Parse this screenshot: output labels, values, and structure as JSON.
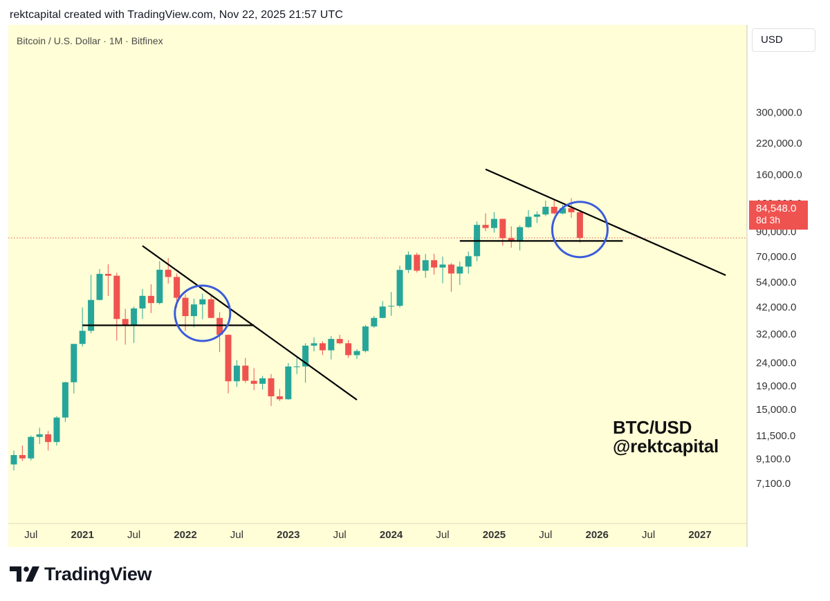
{
  "header": {
    "caption": "rektcapital created with TradingView.com, Nov 22, 2025 21:57 UTC"
  },
  "symbol": {
    "label": "Bitcoin / U.S. Dollar · 1M · Bitfinex"
  },
  "currency_button": {
    "label": "USD"
  },
  "price_tag": {
    "price": "84,548.0",
    "countdown": "8d 3h"
  },
  "watermark": {
    "line1": "BTC/USD",
    "line2": "@rektcapital"
  },
  "footer": {
    "logo_text": "TradingView"
  },
  "colors": {
    "up": "#26a69a",
    "down": "#ef5350",
    "background": "#fffed6",
    "circle": "#3b5bdb",
    "trendline": "#000000"
  },
  "chart_data": {
    "type": "candlestick",
    "title": "Bitcoin / U.S. Dollar · 1M · Bitfinex",
    "y_scale": "log",
    "ylim": [
      6200,
      350000
    ],
    "xlim": [
      "2020-05",
      "2027-04"
    ],
    "y_ticks": [
      {
        "value": 7100,
        "label": "7,100.0"
      },
      {
        "value": 9100,
        "label": "9,100.0"
      },
      {
        "value": 11500,
        "label": "11,500.0"
      },
      {
        "value": 15000,
        "label": "15,000.0"
      },
      {
        "value": 19000,
        "label": "19,000.0"
      },
      {
        "value": 24000,
        "label": "24,000.0"
      },
      {
        "value": 32000,
        "label": "32,000.0"
      },
      {
        "value": 42000,
        "label": "42,000.0"
      },
      {
        "value": 54000,
        "label": "54,000.0"
      },
      {
        "value": 70000,
        "label": "70,000.0"
      },
      {
        "value": 90000,
        "label": "90,000.0"
      },
      {
        "value": 120000,
        "label": "120,000.0"
      },
      {
        "value": 160000,
        "label": "160,000.0"
      },
      {
        "value": 220000,
        "label": "220,000.0"
      },
      {
        "value": 300000,
        "label": "300,000.0"
      }
    ],
    "x_ticks": [
      {
        "date": "2020-07",
        "label": "Jul",
        "bold": false
      },
      {
        "date": "2021-01",
        "label": "2021",
        "bold": true
      },
      {
        "date": "2021-07",
        "label": "Jul",
        "bold": false
      },
      {
        "date": "2022-01",
        "label": "2022",
        "bold": true
      },
      {
        "date": "2022-07",
        "label": "Jul",
        "bold": false
      },
      {
        "date": "2023-01",
        "label": "2023",
        "bold": true
      },
      {
        "date": "2023-07",
        "label": "Jul",
        "bold": false
      },
      {
        "date": "2024-01",
        "label": "2024",
        "bold": true
      },
      {
        "date": "2024-07",
        "label": "Jul",
        "bold": false
      },
      {
        "date": "2025-01",
        "label": "2025",
        "bold": true
      },
      {
        "date": "2025-07",
        "label": "Jul",
        "bold": false
      },
      {
        "date": "2026-01",
        "label": "2026",
        "bold": true
      },
      {
        "date": "2026-07",
        "label": "Jul",
        "bold": false
      },
      {
        "date": "2027-01",
        "label": "2027",
        "bold": true
      }
    ],
    "current_price": 84548,
    "candles": [
      {
        "date": "2020-05",
        "o": 8600,
        "h": 9900,
        "l": 8100,
        "c": 9450
      },
      {
        "date": "2020-06",
        "o": 9450,
        "h": 10400,
        "l": 8900,
        "c": 9140
      },
      {
        "date": "2020-07",
        "o": 9140,
        "h": 11500,
        "l": 8950,
        "c": 11350
      },
      {
        "date": "2020-08",
        "o": 11350,
        "h": 12450,
        "l": 10550,
        "c": 11650
      },
      {
        "date": "2020-09",
        "o": 11650,
        "h": 12050,
        "l": 9900,
        "c": 10780
      },
      {
        "date": "2020-10",
        "o": 10780,
        "h": 14000,
        "l": 10400,
        "c": 13800
      },
      {
        "date": "2020-11",
        "o": 13800,
        "h": 19800,
        "l": 13200,
        "c": 19700
      },
      {
        "date": "2020-12",
        "o": 19700,
        "h": 29000,
        "l": 17600,
        "c": 29000
      },
      {
        "date": "2021-01",
        "o": 29000,
        "h": 41900,
        "l": 28200,
        "c": 33100
      },
      {
        "date": "2021-02",
        "o": 33100,
        "h": 58300,
        "l": 32300,
        "c": 45200
      },
      {
        "date": "2021-03",
        "o": 45200,
        "h": 61700,
        "l": 45000,
        "c": 58800
      },
      {
        "date": "2021-04",
        "o": 58800,
        "h": 64800,
        "l": 47000,
        "c": 57700
      },
      {
        "date": "2021-05",
        "o": 57700,
        "h": 59500,
        "l": 30000,
        "c": 37300
      },
      {
        "date": "2021-06",
        "o": 37300,
        "h": 41300,
        "l": 28800,
        "c": 35000
      },
      {
        "date": "2021-07",
        "o": 35000,
        "h": 42300,
        "l": 29300,
        "c": 41500
      },
      {
        "date": "2021-08",
        "o": 41500,
        "h": 50500,
        "l": 37300,
        "c": 47100
      },
      {
        "date": "2021-09",
        "o": 47100,
        "h": 52900,
        "l": 39600,
        "c": 43800
      },
      {
        "date": "2021-10",
        "o": 43800,
        "h": 66900,
        "l": 43200,
        "c": 61300
      },
      {
        "date": "2021-11",
        "o": 61300,
        "h": 68900,
        "l": 53300,
        "c": 57000
      },
      {
        "date": "2021-12",
        "o": 57000,
        "h": 59000,
        "l": 42000,
        "c": 46200
      },
      {
        "date": "2022-01",
        "o": 46200,
        "h": 47900,
        "l": 33000,
        "c": 38400
      },
      {
        "date": "2022-02",
        "o": 38400,
        "h": 45800,
        "l": 34300,
        "c": 43200
      },
      {
        "date": "2022-03",
        "o": 43200,
        "h": 48200,
        "l": 37200,
        "c": 45500
      },
      {
        "date": "2022-04",
        "o": 45500,
        "h": 47400,
        "l": 37600,
        "c": 37700
      },
      {
        "date": "2022-05",
        "o": 37700,
        "h": 40000,
        "l": 26700,
        "c": 31800
      },
      {
        "date": "2022-06",
        "o": 31800,
        "h": 31900,
        "l": 17600,
        "c": 19900
      },
      {
        "date": "2022-07",
        "o": 19900,
        "h": 24600,
        "l": 18800,
        "c": 23300
      },
      {
        "date": "2022-08",
        "o": 23300,
        "h": 25200,
        "l": 19600,
        "c": 20000
      },
      {
        "date": "2022-09",
        "o": 20000,
        "h": 22700,
        "l": 18200,
        "c": 19400
      },
      {
        "date": "2022-10",
        "o": 19400,
        "h": 21000,
        "l": 18300,
        "c": 20500
      },
      {
        "date": "2022-11",
        "o": 20500,
        "h": 21400,
        "l": 15500,
        "c": 17100
      },
      {
        "date": "2022-12",
        "o": 17100,
        "h": 18400,
        "l": 16300,
        "c": 16600
      },
      {
        "date": "2023-01",
        "o": 16600,
        "h": 23900,
        "l": 16500,
        "c": 23100
      },
      {
        "date": "2023-02",
        "o": 23100,
        "h": 25200,
        "l": 21400,
        "c": 23100
      },
      {
        "date": "2023-03",
        "o": 23100,
        "h": 29200,
        "l": 19600,
        "c": 28500
      },
      {
        "date": "2023-04",
        "o": 28500,
        "h": 31000,
        "l": 26900,
        "c": 29200
      },
      {
        "date": "2023-05",
        "o": 29200,
        "h": 29800,
        "l": 25900,
        "c": 27200
      },
      {
        "date": "2023-06",
        "o": 27200,
        "h": 31400,
        "l": 24800,
        "c": 30500
      },
      {
        "date": "2023-07",
        "o": 30500,
        "h": 31800,
        "l": 28900,
        "c": 29200
      },
      {
        "date": "2023-08",
        "o": 29200,
        "h": 30200,
        "l": 25200,
        "c": 25900
      },
      {
        "date": "2023-09",
        "o": 25900,
        "h": 27500,
        "l": 24900,
        "c": 27000
      },
      {
        "date": "2023-10",
        "o": 27000,
        "h": 35100,
        "l": 26600,
        "c": 34600
      },
      {
        "date": "2023-11",
        "o": 34600,
        "h": 38400,
        "l": 34100,
        "c": 37700
      },
      {
        "date": "2023-12",
        "o": 37700,
        "h": 44700,
        "l": 37600,
        "c": 42300
      },
      {
        "date": "2024-01",
        "o": 42300,
        "h": 49000,
        "l": 38500,
        "c": 42600
      },
      {
        "date": "2024-02",
        "o": 42600,
        "h": 63900,
        "l": 41900,
        "c": 61200
      },
      {
        "date": "2024-03",
        "o": 61200,
        "h": 73800,
        "l": 59300,
        "c": 71300
      },
      {
        "date": "2024-04",
        "o": 71300,
        "h": 72800,
        "l": 59600,
        "c": 60700
      },
      {
        "date": "2024-05",
        "o": 60700,
        "h": 71900,
        "l": 56500,
        "c": 67500
      },
      {
        "date": "2024-06",
        "o": 67500,
        "h": 72000,
        "l": 58400,
        "c": 62700
      },
      {
        "date": "2024-07",
        "o": 62700,
        "h": 70000,
        "l": 53500,
        "c": 64600
      },
      {
        "date": "2024-08",
        "o": 64600,
        "h": 65500,
        "l": 49100,
        "c": 59000
      },
      {
        "date": "2024-09",
        "o": 59000,
        "h": 66500,
        "l": 52600,
        "c": 63300
      },
      {
        "date": "2024-10",
        "o": 63300,
        "h": 73600,
        "l": 58900,
        "c": 70300
      },
      {
        "date": "2024-11",
        "o": 70300,
        "h": 99800,
        "l": 66800,
        "c": 96400
      },
      {
        "date": "2024-12",
        "o": 96400,
        "h": 108300,
        "l": 90500,
        "c": 93400
      },
      {
        "date": "2025-01",
        "o": 93400,
        "h": 109600,
        "l": 89200,
        "c": 102400
      },
      {
        "date": "2025-02",
        "o": 102400,
        "h": 102500,
        "l": 78200,
        "c": 84300
      },
      {
        "date": "2025-03",
        "o": 84300,
        "h": 95000,
        "l": 76600,
        "c": 82500
      },
      {
        "date": "2025-04",
        "o": 82500,
        "h": 95800,
        "l": 74500,
        "c": 94200
      },
      {
        "date": "2025-05",
        "o": 94200,
        "h": 111900,
        "l": 93400,
        "c": 104600
      },
      {
        "date": "2025-06",
        "o": 104600,
        "h": 110400,
        "l": 98200,
        "c": 107100
      },
      {
        "date": "2025-07",
        "o": 107100,
        "h": 123200,
        "l": 105300,
        "c": 115700
      },
      {
        "date": "2025-08",
        "o": 115700,
        "h": 124500,
        "l": 107300,
        "c": 108200
      },
      {
        "date": "2025-09",
        "o": 108200,
        "h": 117900,
        "l": 107300,
        "c": 114000
      },
      {
        "date": "2025-10",
        "o": 114000,
        "h": 126200,
        "l": 103500,
        "c": 109500
      },
      {
        "date": "2025-11",
        "o": 109500,
        "h": 111000,
        "l": 80600,
        "c": 84548
      }
    ],
    "annotations": [
      {
        "kind": "trendline",
        "from": {
          "date": "2021-08",
          "value": 78000
        },
        "to": {
          "date": "2023-09",
          "value": 16500
        }
      },
      {
        "kind": "horizontal",
        "from": {
          "date": "2021-01",
          "value": 35000
        },
        "to": {
          "date": "2022-09",
          "value": 35000
        }
      },
      {
        "kind": "circle",
        "center": {
          "date": "2022-03",
          "value": 39500
        }
      },
      {
        "kind": "trendline",
        "from": {
          "date": "2024-12",
          "value": 169000
        },
        "to": {
          "date": "2027-04",
          "value": 58000
        }
      },
      {
        "kind": "horizontal",
        "from": {
          "date": "2024-09",
          "value": 82000
        },
        "to": {
          "date": "2026-04",
          "value": 82000
        }
      },
      {
        "kind": "circle",
        "center": {
          "date": "2025-11",
          "value": 92000
        }
      }
    ]
  }
}
